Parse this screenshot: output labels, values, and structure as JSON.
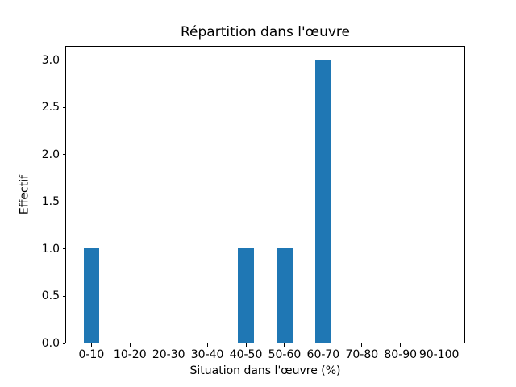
{
  "chart_data": {
    "type": "bar",
    "title": "Répartition dans l'œuvre",
    "xlabel": "Situation dans l'œuvre (%)",
    "ylabel": "Effectif",
    "categories": [
      "0-10",
      "10-20",
      "20-30",
      "30-40",
      "40-50",
      "50-60",
      "60-70",
      "70-80",
      "80-90",
      "90-100"
    ],
    "values": [
      1,
      0,
      0,
      0,
      1,
      1,
      3,
      0,
      0,
      0
    ],
    "yticks": [
      0.0,
      0.5,
      1.0,
      1.5,
      2.0,
      2.5,
      3.0
    ],
    "ytick_labels": [
      "0.0",
      "0.5",
      "1.0",
      "1.5",
      "2.0",
      "2.5",
      "3.0"
    ],
    "ylim": [
      0,
      3.15
    ],
    "xlim": [
      -0.675,
      9.675
    ],
    "bar_width_units": 0.4,
    "bar_color": "#1f77b4",
    "background_color": "#ffffff",
    "text_color": "#000000",
    "grid": false,
    "legend": null
  }
}
